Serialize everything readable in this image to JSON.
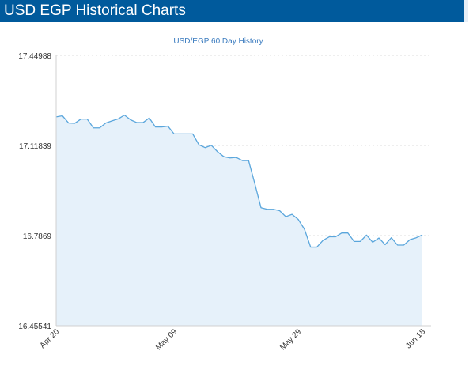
{
  "header": {
    "title": "USD EGP Historical Charts"
  },
  "colors": {
    "header_bg": "#005a9c",
    "line": "#5aa6dc",
    "area_fill": "#e6f1fa",
    "grid": "#dcdcdc"
  },
  "chart_data": {
    "type": "area",
    "title": "USD/EGP  60 Day History",
    "xlabel": "",
    "ylabel": "",
    "ylim": [
      16.45541,
      17.44988
    ],
    "yticks": [
      "17.44988",
      "17.11839",
      "16.7869",
      "16.45541"
    ],
    "ytick_values": [
      17.44988,
      17.11839,
      16.7869,
      16.45541
    ],
    "xticks": [
      {
        "label": "Apr 20",
        "index": 0
      },
      {
        "label": "May 09",
        "index": 19
      },
      {
        "label": "May 29",
        "index": 39
      },
      {
        "label": "Jun 18",
        "index": 59
      }
    ],
    "grid": "horizontal-dotted",
    "series": [
      {
        "values": [
          17.2235,
          17.2275,
          17.201,
          17.2,
          17.2155,
          17.2155,
          17.183,
          17.183,
          17.201,
          17.209,
          17.216,
          17.23,
          17.2125,
          17.2025,
          17.2025,
          17.2195,
          17.1865,
          17.1865,
          17.1895,
          17.161,
          17.161,
          17.161,
          17.161,
          17.121,
          17.1105,
          17.119,
          17.0955,
          17.0775,
          17.0725,
          17.0745,
          17.063,
          17.063,
          16.9785,
          16.8895,
          16.8835,
          16.8835,
          16.8785,
          16.8565,
          16.865,
          16.8465,
          16.8105,
          16.7445,
          16.7445,
          16.7695,
          16.7825,
          16.7825,
          16.7965,
          16.7965,
          16.7655,
          16.7655,
          16.789,
          16.7625,
          16.778,
          16.7535,
          16.779,
          16.752,
          16.752,
          16.772,
          16.779,
          16.7895
        ]
      }
    ]
  }
}
